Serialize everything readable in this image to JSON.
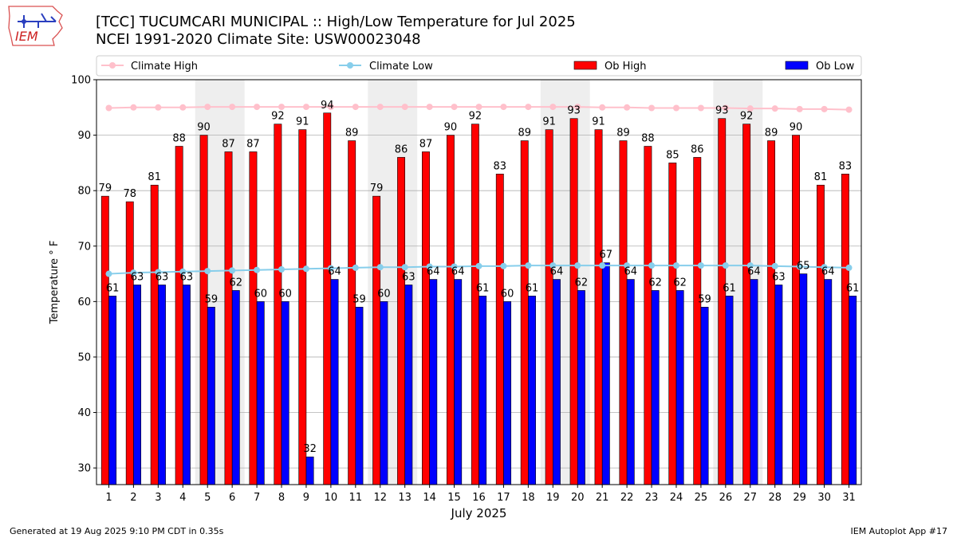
{
  "header": {
    "title_line1": "[TCC] TUCUMCARI MUNICIPAL :: High/Low Temperature for Jul 2025",
    "title_line2": "NCEI 1991-2020 Climate Site: USW00023048",
    "logo_text": "IEM"
  },
  "footer": {
    "generated": "Generated at 19 Aug 2025 9:10 PM CDT in 0.35s",
    "app": "IEM Autoplot App #17"
  },
  "colors": {
    "ob_high": "#ff0000",
    "ob_low": "#0000ff",
    "climate_high": "#ffc0cb",
    "climate_low": "#87ceeb",
    "weekend_shade": "#eeeeee",
    "grid": "#b0b0b0"
  },
  "chart_data": {
    "type": "bar",
    "xlabel": "July 2025",
    "ylabel": "Temperature ° F",
    "ylim": [
      27,
      100
    ],
    "xlim": [
      0.5,
      31.5
    ],
    "yticks": [
      30,
      40,
      50,
      60,
      70,
      80,
      90,
      100
    ],
    "grid": "horizontal",
    "legend_placement": "top",
    "categories": [
      "1",
      "2",
      "3",
      "4",
      "5",
      "6",
      "7",
      "8",
      "9",
      "10",
      "11",
      "12",
      "13",
      "14",
      "15",
      "16",
      "17",
      "18",
      "19",
      "20",
      "21",
      "22",
      "23",
      "24",
      "25",
      "26",
      "27",
      "28",
      "29",
      "30",
      "31"
    ],
    "shaded_days": [
      [
        5,
        6
      ],
      [
        12,
        13
      ],
      [
        19,
        20
      ],
      [
        26,
        27
      ]
    ],
    "series": [
      {
        "name": "Ob High",
        "kind": "bar",
        "values": [
          79,
          78,
          81,
          88,
          90,
          87,
          87,
          92,
          91,
          94,
          89,
          79,
          86,
          87,
          90,
          92,
          83,
          89,
          91,
          93,
          91,
          89,
          88,
          85,
          86,
          93,
          92,
          89,
          90,
          81,
          83
        ]
      },
      {
        "name": "Ob Low",
        "kind": "bar",
        "values": [
          61,
          63,
          63,
          63,
          59,
          62,
          60,
          60,
          32,
          64,
          59,
          60,
          63,
          64,
          64,
          61,
          60,
          61,
          64,
          62,
          67,
          64,
          62,
          62,
          59,
          61,
          64,
          63,
          65,
          64,
          61
        ]
      },
      {
        "name": "Climate High",
        "kind": "line",
        "values": [
          94.9,
          95.0,
          95.0,
          95.0,
          95.1,
          95.1,
          95.1,
          95.1,
          95.1,
          95.1,
          95.1,
          95.1,
          95.1,
          95.1,
          95.1,
          95.1,
          95.1,
          95.1,
          95.1,
          95.1,
          95.0,
          95.0,
          94.9,
          94.9,
          94.9,
          94.9,
          94.8,
          94.8,
          94.7,
          94.7,
          94.6
        ]
      },
      {
        "name": "Climate Low",
        "kind": "line",
        "values": [
          65.0,
          65.2,
          65.3,
          65.4,
          65.5,
          65.6,
          65.7,
          65.8,
          65.9,
          66.0,
          66.1,
          66.2,
          66.2,
          66.3,
          66.3,
          66.4,
          66.4,
          66.5,
          66.5,
          66.5,
          66.5,
          66.5,
          66.5,
          66.5,
          66.5,
          66.5,
          66.5,
          66.4,
          66.3,
          66.2,
          66.1
        ]
      }
    ]
  }
}
